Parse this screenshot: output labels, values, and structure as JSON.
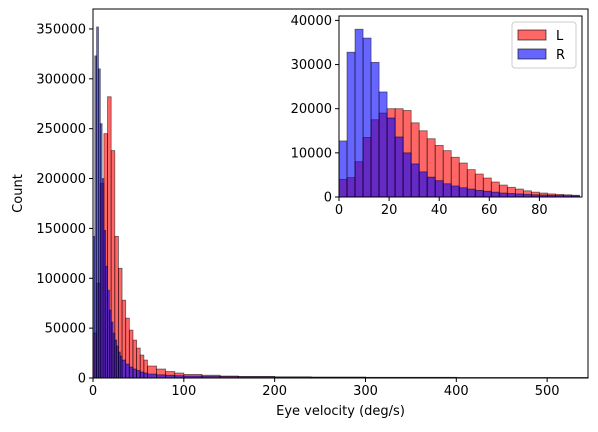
{
  "chart_data": [
    {
      "panel": "main",
      "type": "bar",
      "xlabel": "Eye velocity (deg/s)",
      "ylabel": "Count",
      "xlim": [
        0,
        545
      ],
      "ylim": [
        0,
        370000
      ],
      "xticks": [
        "0",
        "100",
        "200",
        "300",
        "400",
        "500"
      ],
      "yticks": [
        "0",
        "50000",
        "100000",
        "150000",
        "200000",
        "250000",
        "300000",
        "350000"
      ],
      "grid": false,
      "series": [
        {
          "name": "L",
          "color": "#ff0000",
          "bin_edges": [
            0,
            4,
            8,
            12,
            16,
            20,
            24,
            28,
            32,
            36,
            40,
            44,
            48,
            52,
            56,
            60,
            70,
            80,
            90,
            100,
            120,
            140,
            160,
            200,
            240,
            300,
            400,
            545
          ],
          "values": [
            45000,
            95000,
            195000,
            245000,
            282000,
            228000,
            142000,
            110000,
            78000,
            60000,
            48000,
            38000,
            30000,
            23000,
            18000,
            12000,
            9000,
            6500,
            5000,
            3600,
            2800,
            2000,
            1600,
            1100,
            800,
            600,
            400
          ]
        },
        {
          "name": "R",
          "color": "#0000ff",
          "bin_edges": [
            0,
            2,
            4,
            6,
            8,
            10,
            12,
            14,
            16,
            18,
            20,
            22,
            24,
            26,
            28,
            30,
            32,
            36,
            40,
            44,
            48,
            52,
            56,
            60,
            70,
            80,
            90,
            100,
            120,
            140,
            160,
            200,
            240,
            300,
            400,
            545
          ],
          "values": [
            142000,
            323000,
            352000,
            310000,
            255000,
            200000,
            148000,
            112000,
            88000,
            68000,
            56000,
            45000,
            38000,
            32000,
            26000,
            22000,
            18000,
            14000,
            11000,
            9000,
            7500,
            6000,
            5000,
            4000,
            3200,
            2700,
            2300,
            2000,
            1700,
            1500,
            1300,
            1100,
            900,
            700,
            500
          ]
        }
      ]
    },
    {
      "panel": "inset",
      "type": "bar",
      "xlim": [
        0,
        97
      ],
      "ylim": [
        0,
        41000
      ],
      "xticks": [
        "0",
        "20",
        "40",
        "60",
        "80"
      ],
      "yticks": [
        "0",
        "10000",
        "20000",
        "30000",
        "40000"
      ],
      "legend": "top-right",
      "grid": false,
      "series": [
        {
          "name": "L",
          "color": "#ff0000",
          "bin_width": 3.2,
          "values": [
            4000,
            4400,
            8000,
            13500,
            17500,
            19000,
            20000,
            20000,
            19600,
            16800,
            15000,
            13200,
            11700,
            10500,
            9000,
            7700,
            6200,
            5200,
            4300,
            3400,
            2700,
            2200,
            1800,
            1400,
            1100,
            900,
            700,
            600,
            500,
            400
          ]
        },
        {
          "name": "R",
          "color": "#0000ff",
          "bin_width": 3.2,
          "values": [
            12700,
            32800,
            38000,
            36000,
            30500,
            23800,
            17900,
            13600,
            10000,
            7500,
            5700,
            4500,
            3700,
            3000,
            2500,
            2100,
            1800,
            1500,
            1300,
            1100,
            900,
            800,
            700,
            600,
            500,
            450,
            400,
            350,
            300,
            250
          ]
        }
      ]
    }
  ]
}
